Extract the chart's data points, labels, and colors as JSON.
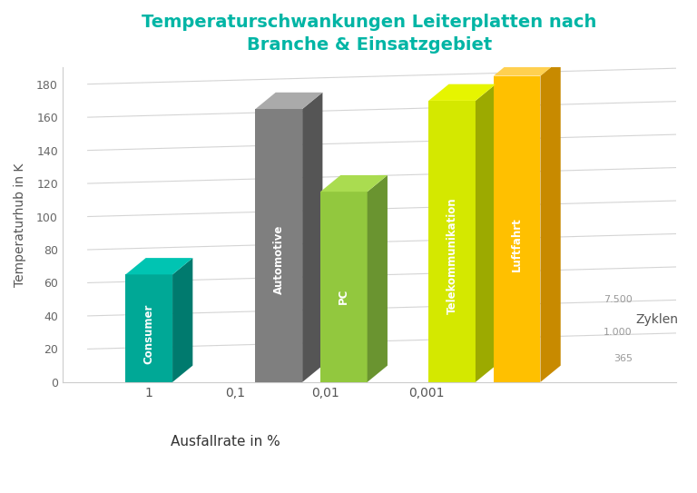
{
  "title_line1": "Temperaturschwankungen Leiterplatten nach",
  "title_line2": "Branche & Einsatzgebiet",
  "title_color": "#00B5A5",
  "bars": [
    {
      "label": "Consumer",
      "value": 65,
      "face_color": "#00A896",
      "side_color": "#007A6E",
      "top_color": "#00C4B2"
    },
    {
      "label": "Automotive",
      "value": 165,
      "face_color": "#7F7F7F",
      "side_color": "#555555",
      "top_color": "#AAAAAA"
    },
    {
      "label": "PC",
      "value": 115,
      "face_color": "#92C83E",
      "side_color": "#6A9430",
      "top_color": "#AADC50"
    },
    {
      "label": "Telekommunikation",
      "value": 170,
      "face_color": "#D4E800",
      "side_color": "#9CAA00",
      "top_color": "#E6F500"
    },
    {
      "label": "Luftfahrt",
      "value": 185,
      "face_color": "#FFC000",
      "side_color": "#C88A00",
      "top_color": "#FFD050"
    }
  ],
  "xlabel": "Ausfallrate in %",
  "ylabel": "Temperaturhub in K",
  "xtick_labels": [
    "1",
    "0,1",
    "0,01",
    "0,001"
  ],
  "yticks": [
    0,
    20,
    40,
    60,
    80,
    100,
    120,
    140,
    160,
    180
  ],
  "ylim": [
    0,
    190
  ],
  "zyklen_labels": [
    "365",
    "1.000",
    "7.500"
  ],
  "zyklen_label": "Zyklen",
  "label_color": "#ffffff",
  "background_color": "#ffffff",
  "grid_color": "#d0d0d0"
}
